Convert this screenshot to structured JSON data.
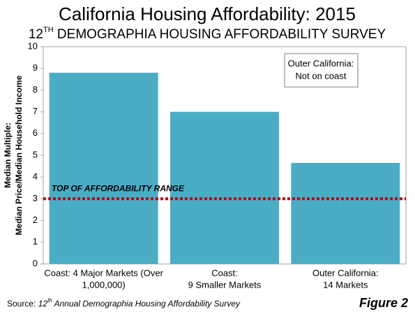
{
  "chart_data": {
    "type": "bar",
    "title": "California Housing Affordability: 2015",
    "subtitle": {
      "number": "12",
      "suffix": "TH",
      "text": " DEMOGRAPHIA HOUSING AFFORDABILITY SURVEY"
    },
    "y_label": [
      "Median Multiple:",
      "Median Price/Median Household Income"
    ],
    "categories": [
      [
        "Coast: 4 Major Markets (Over",
        "1,000,000)"
      ],
      [
        "Coast:",
        "9 Smaller Markets"
      ],
      [
        "Outer California:",
        "14 Markets"
      ]
    ],
    "values": [
      8.8,
      7.0,
      4.65
    ],
    "color": "#4bacc6",
    "ylim": [
      0,
      10
    ],
    "yticks": [
      0,
      1,
      2,
      3,
      4,
      5,
      6,
      7,
      8,
      9,
      10
    ],
    "grid": false,
    "reference_line": {
      "value": 3,
      "label": "TOP OF AFFORDABILITY RANGE",
      "color": "#c00000"
    },
    "annotation": [
      "Outer California:",
      "Not on coast"
    ],
    "source": {
      "prefix": "Source: ",
      "number": "12",
      "suffix": "th",
      "text": " Annual Demographia Housing Affordability Survey"
    },
    "figure_label": "Figure 2"
  }
}
